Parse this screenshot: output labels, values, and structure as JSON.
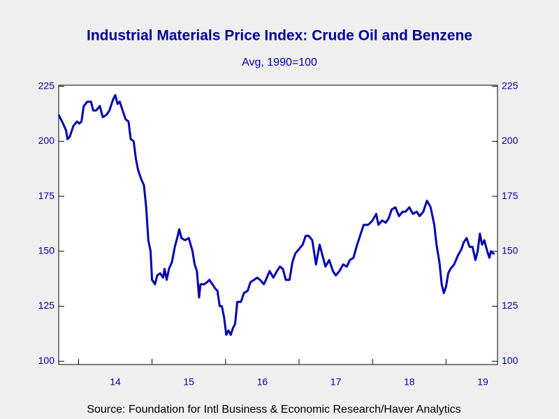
{
  "chart_data": {
    "type": "line",
    "title": "Industrial Materials Price Index: Crude Oil and Benzene",
    "subtitle": "Avg, 1990=100",
    "source": "Source:  Foundation for Intl Business & Economic Research/Haver Analytics",
    "xlim": [
      2013.73,
      2019.7
    ],
    "xticks": [
      {
        "value": 2014.5,
        "label": "14"
      },
      {
        "value": 2015.5,
        "label": "15"
      },
      {
        "value": 2016.5,
        "label": "16"
      },
      {
        "value": 2017.5,
        "label": "17"
      },
      {
        "value": 2018.5,
        "label": "18"
      },
      {
        "value": 2019.5,
        "label": "19"
      }
    ],
    "xminor": [
      2014,
      2015,
      2016,
      2017,
      2018,
      2019
    ],
    "ylim": [
      98.5,
      225.5
    ],
    "yticks": [
      100,
      125,
      150,
      175,
      200,
      225
    ],
    "grid": false,
    "x": [
      2013.73,
      2013.79,
      2013.83,
      2013.85,
      2013.88,
      2013.93,
      2013.98,
      2014.01,
      2014.04,
      2014.07,
      2014.12,
      2014.17,
      2014.2,
      2014.24,
      2014.29,
      2014.33,
      2014.38,
      2014.42,
      2014.47,
      2014.5,
      2014.53,
      2014.56,
      2014.6,
      2014.64,
      2014.68,
      2014.71,
      2014.75,
      2014.78,
      2014.81,
      2014.85,
      2014.89,
      2014.92,
      2014.95,
      2014.98,
      2015.0,
      2015.04,
      2015.07,
      2015.11,
      2015.15,
      2015.17,
      2015.2,
      2015.23,
      2015.27,
      2015.31,
      2015.35,
      2015.37,
      2015.4,
      2015.45,
      2015.5,
      2015.55,
      2015.58,
      2015.61,
      2015.64,
      2015.66,
      2015.71,
      2015.75,
      2015.78,
      2015.82,
      2015.86,
      2015.89,
      2015.92,
      2015.95,
      2015.98,
      2016.01,
      2016.04,
      2016.07,
      2016.1,
      2016.13,
      2016.16,
      2016.21,
      2016.25,
      2016.3,
      2016.34,
      2016.39,
      2016.43,
      2016.47,
      2016.52,
      2016.55,
      2016.6,
      2016.65,
      2016.7,
      2016.74,
      2016.78,
      2016.82,
      2016.87,
      2016.91,
      2016.95,
      2017.0,
      2017.05,
      2017.09,
      2017.13,
      2017.18,
      2017.23,
      2017.28,
      2017.32,
      2017.36,
      2017.41,
      2017.46,
      2017.5,
      2017.55,
      2017.6,
      2017.65,
      2017.69,
      2017.74,
      2017.79,
      2017.84,
      2017.88,
      2017.94,
      2018.0,
      2018.05,
      2018.08,
      2018.13,
      2018.18,
      2018.22,
      2018.26,
      2018.31,
      2018.36,
      2018.41,
      2018.45,
      2018.5,
      2018.55,
      2018.6,
      2018.64,
      2018.69,
      2018.74,
      2018.79,
      2018.84,
      2018.87,
      2018.91,
      2018.94,
      2018.97,
      2019.0,
      2019.03,
      2019.06,
      2019.11,
      2019.16,
      2019.21,
      2019.24,
      2019.28,
      2019.32,
      2019.36,
      2019.4,
      2019.43,
      2019.46,
      2019.49,
      2019.52,
      2019.56,
      2019.59,
      2019.61,
      2019.64,
      2019.66
    ],
    "series": [
      {
        "color": "#0000b0",
        "values": [
          212,
          208,
          205,
          201,
          202,
          207,
          209,
          208,
          209,
          216,
          218,
          218,
          214,
          214,
          216,
          211,
          212,
          214,
          219,
          221,
          217,
          218,
          214,
          210,
          209,
          201,
          200,
          192,
          187,
          183,
          180,
          170,
          155,
          150,
          137,
          135,
          139,
          140,
          138,
          142,
          137,
          142,
          145,
          152,
          157,
          160,
          156,
          155,
          156,
          150,
          144,
          141,
          129,
          135,
          135,
          136,
          137,
          135,
          133,
          132,
          125,
          125,
          120,
          112,
          114,
          112,
          115,
          117,
          127,
          127,
          131,
          132,
          136,
          137,
          138,
          137,
          135,
          137,
          141,
          138,
          141,
          143,
          142,
          137,
          137,
          145,
          149,
          151,
          153,
          157,
          157,
          155,
          144,
          153,
          148,
          143,
          146,
          141,
          139,
          141,
          144,
          143,
          146,
          147,
          153,
          158,
          162,
          162,
          164,
          167,
          162,
          164,
          163,
          165,
          169,
          170,
          166,
          168,
          168,
          170,
          167,
          168,
          166,
          168,
          173,
          170,
          162,
          153,
          145,
          135,
          131,
          134,
          140,
          142,
          144,
          148,
          151,
          154,
          156,
          152,
          152,
          146,
          150,
          158,
          153,
          155,
          150,
          147,
          150,
          149,
          149
        ]
      }
    ]
  }
}
